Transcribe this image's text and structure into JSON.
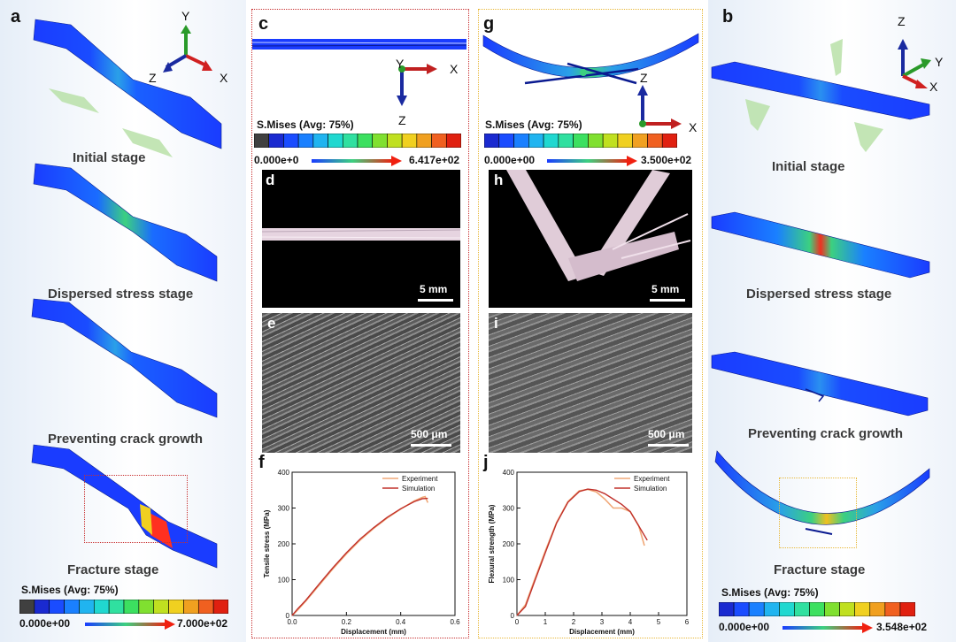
{
  "panels": {
    "a": "a",
    "b": "b",
    "c": "c",
    "d": "d",
    "e": "e",
    "f": "f",
    "g": "g",
    "h": "h",
    "i": "i",
    "j": "j"
  },
  "stages_tensile": [
    "Initial stage",
    "Dispersed stress stage",
    "Preventing crack growth",
    "Fracture stage"
  ],
  "stages_flexural": [
    "Initial stage",
    "Dispersed stress stage",
    "Preventing crack growth",
    "Fracture stage"
  ],
  "axes": {
    "x": "X",
    "y": "Y",
    "z": "Z"
  },
  "colorbars": {
    "a": {
      "title": "S.Mises (Avg: 75%)",
      "min": "0.000e+00",
      "max": "7.000e+02"
    },
    "c": {
      "title": "S.Mises (Avg: 75%)",
      "min": "0.000e+0",
      "max": "6.417e+02"
    },
    "g": {
      "title": "S.Mises (Avg: 75%)",
      "min": "0.000e+00",
      "max": "3.500e+02"
    },
    "b": {
      "title": "S.Mises (Avg: 75%)",
      "min": "0.000e+00",
      "max": "3.548e+02"
    }
  },
  "scale_bars": {
    "d": "5 mm",
    "h": "5 mm",
    "e": "500 μm",
    "i": "500 μm"
  },
  "colors": {
    "blue": "#1a3cff",
    "red": "#e8341c",
    "experiment": "#f0a878",
    "simulation": "#c0302a",
    "box_red": "#c83030",
    "box_yellow": "#e8b838"
  },
  "chart_data": [
    {
      "type": "line",
      "panel": "f",
      "xlabel": "Displacement (mm)",
      "ylabel": "Tensile stress (MPa)",
      "xlim": [
        0,
        0.6
      ],
      "ylim": [
        0,
        400
      ],
      "xticks": [
        "0.0",
        "0.2",
        "0.4",
        "0.6"
      ],
      "yticks": [
        "0",
        "100",
        "200",
        "300",
        "400"
      ],
      "legend": "top-right",
      "series": [
        {
          "name": "Experiment",
          "x": [
            0,
            0.02,
            0.05,
            0.1,
            0.15,
            0.2,
            0.25,
            0.3,
            0.35,
            0.4,
            0.45,
            0.48,
            0.49,
            0.5
          ],
          "y": [
            0,
            15,
            40,
            85,
            130,
            172,
            210,
            243,
            272,
            297,
            320,
            330,
            332,
            315
          ]
        },
        {
          "name": "Simulation",
          "x": [
            0,
            0.02,
            0.05,
            0.1,
            0.15,
            0.2,
            0.25,
            0.3,
            0.35,
            0.4,
            0.45,
            0.48,
            0.5
          ],
          "y": [
            0,
            18,
            42,
            88,
            133,
            175,
            213,
            245,
            274,
            298,
            318,
            326,
            327
          ]
        }
      ]
    },
    {
      "type": "line",
      "panel": "j",
      "xlabel": "Displacement (mm)",
      "ylabel": "Flexural strength (MPa)",
      "xlim": [
        0,
        6
      ],
      "ylim": [
        0,
        400
      ],
      "xticks": [
        "0",
        "1",
        "2",
        "3",
        "4",
        "5",
        "6"
      ],
      "yticks": [
        "0",
        "100",
        "200",
        "300",
        "400"
      ],
      "legend": "top-right",
      "series": [
        {
          "name": "Experiment",
          "x": [
            0,
            0.3,
            0.6,
            1.0,
            1.4,
            1.8,
            2.2,
            2.5,
            2.8,
            3.1,
            3.4,
            3.7,
            4.0,
            4.3,
            4.5
          ],
          "y": [
            0,
            30,
            95,
            180,
            260,
            318,
            348,
            352,
            345,
            325,
            300,
            300,
            290,
            250,
            195
          ]
        },
        {
          "name": "Simulation",
          "x": [
            0,
            0.3,
            0.6,
            1.0,
            1.4,
            1.8,
            2.2,
            2.5,
            2.8,
            3.1,
            3.4,
            3.7,
            4.0,
            4.3,
            4.6
          ],
          "y": [
            0,
            25,
            90,
            175,
            258,
            316,
            346,
            353,
            350,
            340,
            325,
            310,
            290,
            250,
            210
          ]
        }
      ]
    }
  ]
}
